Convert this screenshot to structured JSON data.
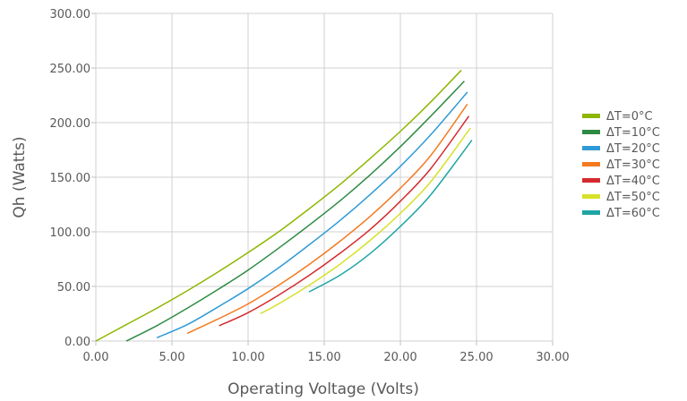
{
  "chart_data": {
    "type": "line",
    "xlabel": "Operating Voltage (Volts)",
    "ylabel": "Qh (Watts)",
    "xlim": [
      0,
      30
    ],
    "ylim": [
      0,
      300
    ],
    "x_ticks": [
      "0.00",
      "5.00",
      "10.00",
      "15.00",
      "20.00",
      "25.00",
      "30.00"
    ],
    "y_ticks": [
      "0.00",
      "50.00",
      "100.00",
      "150.00",
      "200.00",
      "250.00",
      "300.00"
    ],
    "x_tick_values": [
      0,
      5,
      10,
      15,
      20,
      25,
      30
    ],
    "y_tick_values": [
      0,
      50,
      100,
      150,
      200,
      250,
      300
    ],
    "grid": true,
    "legend_position": "right",
    "series": [
      {
        "name": "ΔT=0°C",
        "color": "#8DB600",
        "x": [
          0,
          2,
          4,
          6,
          8,
          10,
          12,
          14,
          16,
          18,
          20,
          22,
          24
        ],
        "y": [
          0,
          15,
          30,
          46,
          63,
          81,
          100,
          121,
          143,
          167,
          192,
          219,
          248
        ]
      },
      {
        "name": "ΔT=10°C",
        "color": "#2E8B43",
        "x": [
          2,
          4,
          6,
          8,
          10,
          12,
          14,
          16,
          18,
          20,
          22,
          24.2
        ],
        "y": [
          0,
          14,
          30,
          47,
          65,
          85,
          106,
          128,
          152,
          178,
          206,
          238
        ]
      },
      {
        "name": "ΔT=20°C",
        "color": "#2F9BD6",
        "x": [
          4,
          6,
          8,
          10,
          12,
          14,
          16,
          18,
          20,
          22,
          24.4
        ],
        "y": [
          3,
          15,
          31,
          48,
          67,
          88,
          110,
          134,
          160,
          189,
          228
        ]
      },
      {
        "name": "ΔT=30°C",
        "color": "#F47A20",
        "x": [
          6,
          8,
          10,
          12,
          14,
          16,
          18,
          20,
          22,
          24.4
        ],
        "y": [
          7,
          20,
          34,
          51,
          70,
          91,
          114,
          140,
          170,
          217
        ]
      },
      {
        "name": "ΔT=40°C",
        "color": "#D42A2F",
        "x": [
          8.1,
          10,
          12,
          14,
          16,
          18,
          20,
          22,
          24.5
        ],
        "y": [
          14,
          26,
          42,
          60,
          80,
          102,
          128,
          158,
          206
        ]
      },
      {
        "name": "ΔT=50°C",
        "color": "#D6E12A",
        "x": [
          10.8,
          12,
          14,
          16,
          18,
          20,
          22,
          24.6
        ],
        "y": [
          25,
          34,
          51,
          70,
          92,
          117,
          146,
          195
        ]
      },
      {
        "name": "ΔT=60°C",
        "color": "#1FA5A5",
        "x": [
          14,
          16,
          18,
          20,
          22,
          24.7
        ],
        "y": [
          45,
          60,
          80,
          105,
          134,
          184
        ]
      }
    ]
  }
}
